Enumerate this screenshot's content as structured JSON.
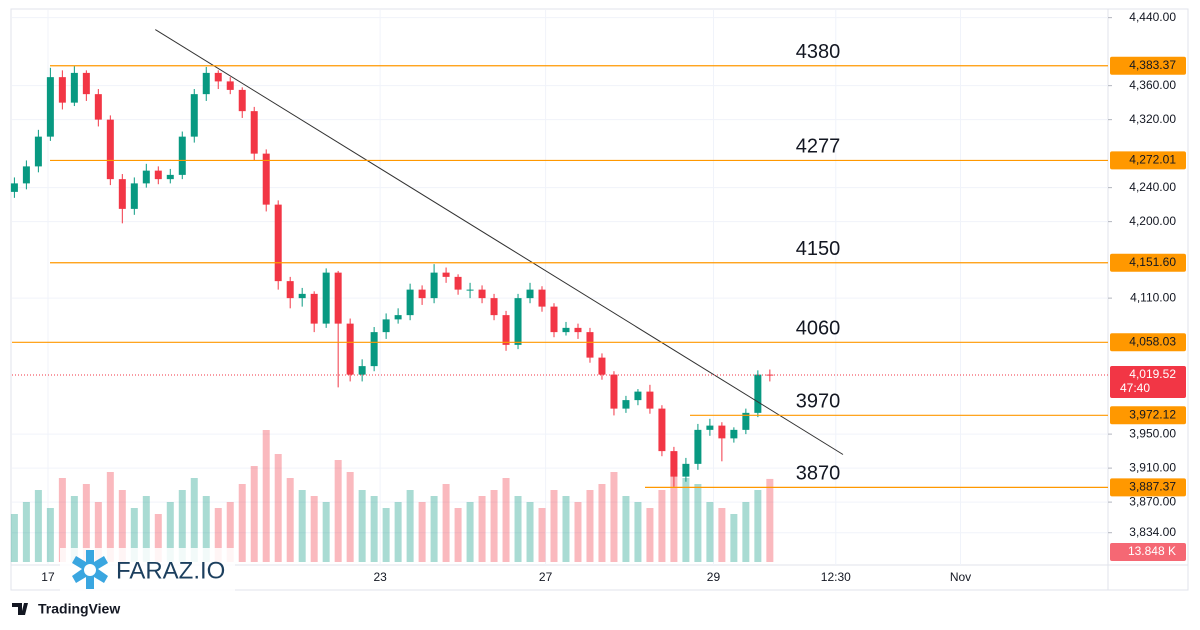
{
  "chart_data": {
    "type": "candlestick",
    "branding": "TradingView",
    "watermark": "FARAZ.IO",
    "x": [
      0,
      1,
      2,
      3,
      4,
      5,
      6,
      7,
      8,
      9,
      10,
      11,
      12,
      13,
      14,
      15,
      16,
      17,
      18,
      19,
      20,
      21,
      22,
      23,
      24,
      25,
      26,
      27,
      28,
      29,
      30,
      31,
      32,
      33,
      34,
      35,
      36,
      37,
      38,
      39,
      40,
      41,
      42,
      43,
      44,
      45,
      46,
      47,
      48,
      49,
      50,
      51,
      52,
      53,
      54,
      55,
      56,
      57,
      58,
      59,
      60,
      61,
      62,
      63
    ],
    "open": [
      4235,
      4245,
      4265,
      4300,
      4370,
      4340,
      4375,
      4350,
      4320,
      4250,
      4215,
      4245,
      4260,
      4250,
      4255,
      4300,
      4350,
      4375,
      4365,
      4355,
      4330,
      4280,
      4220,
      4130,
      4110,
      4115,
      4080,
      4140,
      4080,
      4020,
      4030,
      4070,
      4085,
      4090,
      4120,
      4110,
      4140,
      4135,
      4120,
      4120,
      4110,
      4090,
      4055,
      4110,
      4120,
      4100,
      4070,
      4075,
      4070,
      4040,
      4020,
      3980,
      3990,
      4000,
      3980,
      3930,
      3900,
      3915,
      3955,
      3960,
      3945,
      3955,
      3975,
      4020
    ],
    "high": [
      4252,
      4272,
      4308,
      4381,
      4378,
      4383,
      4378,
      4356,
      4325,
      4256,
      4252,
      4268,
      4265,
      4262,
      4306,
      4356,
      4382,
      4378,
      4370,
      4358,
      4335,
      4285,
      4225,
      4135,
      4122,
      4118,
      4145,
      4142,
      4086,
      4038,
      4076,
      4092,
      4098,
      4127,
      4125,
      4150,
      4146,
      4138,
      4128,
      4125,
      4115,
      4095,
      4115,
      4128,
      4124,
      4104,
      4082,
      4080,
      4075,
      4045,
      4024,
      3995,
      4003,
      4008,
      3984,
      3935,
      3922,
      3962,
      3968,
      3964,
      3958,
      3980,
      4025,
      4026
    ],
    "low": [
      4228,
      4238,
      4258,
      4295,
      4332,
      4336,
      4342,
      4312,
      4243,
      4198,
      4208,
      4240,
      4244,
      4245,
      4250,
      4293,
      4342,
      4356,
      4350,
      4322,
      4272,
      4212,
      4120,
      4098,
      4100,
      4070,
      4075,
      4005,
      4012,
      4012,
      4024,
      4062,
      4080,
      4084,
      4102,
      4104,
      4128,
      4114,
      4110,
      4104,
      4084,
      4048,
      4050,
      4104,
      4094,
      4064,
      4066,
      4062,
      4034,
      4014,
      3972,
      3975,
      3984,
      3974,
      3924,
      3888,
      3894,
      3908,
      3948,
      3918,
      3940,
      3950,
      3970,
      4012
    ],
    "close": [
      4245,
      4265,
      4300,
      4370,
      4340,
      4375,
      4350,
      4320,
      4250,
      4215,
      4245,
      4260,
      4250,
      4255,
      4300,
      4350,
      4375,
      4365,
      4355,
      4330,
      4280,
      4220,
      4130,
      4110,
      4115,
      4080,
      4140,
      4080,
      4020,
      4030,
      4070,
      4085,
      4090,
      4120,
      4110,
      4140,
      4135,
      4120,
      4120,
      4110,
      4090,
      4055,
      4110,
      4120,
      4100,
      4070,
      4075,
      4070,
      4040,
      4020,
      3980,
      3990,
      4000,
      3980,
      3930,
      3900,
      3915,
      3955,
      3960,
      3945,
      3955,
      3975,
      4020,
      4019.52
    ],
    "volume": [
      8,
      10,
      12,
      9,
      14,
      11,
      13,
      10,
      15,
      12,
      9,
      11,
      8,
      10,
      12,
      14,
      11,
      9,
      10,
      13,
      16,
      22,
      18,
      14,
      12,
      11,
      10,
      17,
      15,
      12,
      11,
      9,
      10,
      12,
      10,
      11,
      13,
      9,
      10,
      11,
      12,
      14,
      11,
      10,
      9,
      12,
      11,
      10,
      12,
      13,
      15,
      11,
      10,
      9,
      12,
      18,
      14,
      13,
      10,
      9,
      8,
      10,
      12,
      13.848
    ],
    "volume_label": "13.848 K",
    "volume_ylim": [
      0,
      50
    ],
    "up_color": "#089981",
    "down_color": "#f23645",
    "level_color": "#ff9800",
    "xlim": [
      -0.2,
      91.2
    ],
    "xticks": [
      {
        "value": 2.8,
        "label": "17"
      },
      {
        "value": 30.5,
        "label": "23"
      },
      {
        "value": 44.3,
        "label": "27"
      },
      {
        "value": 58.3,
        "label": "29"
      },
      {
        "value": 68.5,
        "label": "12:30"
      },
      {
        "value": 78.9,
        "label": "Nov"
      }
    ],
    "ylim": [
      3796,
      4449
    ],
    "yticks": [
      {
        "value": 4440,
        "label": "4,440.00"
      },
      {
        "value": 4360,
        "label": "4,360.00"
      },
      {
        "value": 4320,
        "label": "4,320.00"
      },
      {
        "value": 4240,
        "label": "4,240.00"
      },
      {
        "value": 4200,
        "label": "4,200.00"
      },
      {
        "value": 4110,
        "label": "4,110.00"
      },
      {
        "value": 3950,
        "label": "3,950.00"
      },
      {
        "value": 3910,
        "label": "3,910.00"
      },
      {
        "value": 3870,
        "label": "3,870.00"
      },
      {
        "value": 3834,
        "label": "3,834.00"
      }
    ],
    "grid": true,
    "levels": [
      {
        "value": 4383.37,
        "label": "4,383.37",
        "annotation": "4380"
      },
      {
        "value": 4272.01,
        "label": "4,272.01",
        "annotation": "4277"
      },
      {
        "value": 4151.6,
        "label": "4,151.60",
        "annotation": "4150"
      },
      {
        "value": 4058.03,
        "label": "4,058.03",
        "annotation": "4060"
      },
      {
        "value": 3972.12,
        "label": "3,972.12",
        "annotation": "3970"
      },
      {
        "value": 3887.37,
        "label": "3,887.37",
        "annotation": "3870"
      }
    ],
    "last_price": {
      "value": 4019.52,
      "label": "4,019.52",
      "countdown": "47:40"
    },
    "trendline": {
      "x": [
        11.75,
        69.1
      ],
      "y": [
        4426,
        3926
      ]
    }
  }
}
